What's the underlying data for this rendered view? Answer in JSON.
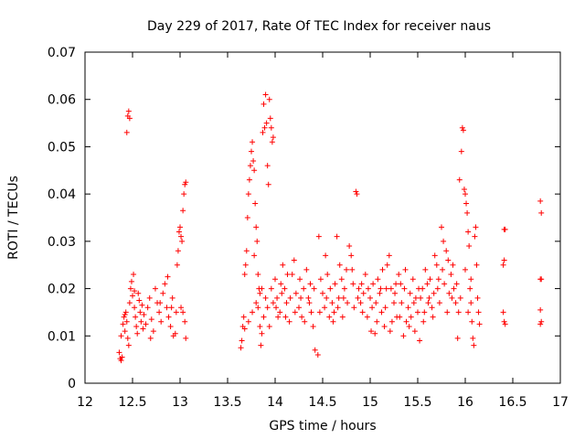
{
  "chart_data": {
    "type": "scatter",
    "title": "Day 229 of 2017, Rate Of TEC Index for receiver naus",
    "xlabel": "GPS time / hours",
    "ylabel": "ROTI / TECUs",
    "xlim": [
      12,
      17
    ],
    "ylim": [
      0,
      0.07
    ],
    "xticks": [
      "12",
      "12.5",
      "13",
      "13.5",
      "14",
      "14.5",
      "15",
      "15.5",
      "16",
      "16.5",
      "17"
    ],
    "yticks": [
      "0",
      "0.01",
      "0.02",
      "0.03",
      "0.04",
      "0.05",
      "0.06",
      "0.07"
    ],
    "marker": "plus",
    "color": "#ff0000",
    "grid": false,
    "series": [
      {
        "points": [
          [
            12.36,
            0.0065
          ],
          [
            12.37,
            0.0052
          ],
          [
            12.38,
            0.0048
          ],
          [
            12.39,
            0.0055
          ],
          [
            12.38,
            0.01
          ],
          [
            12.4,
            0.0125
          ],
          [
            12.41,
            0.014
          ],
          [
            12.42,
            0.011
          ],
          [
            12.43,
            0.015
          ],
          [
            12.44,
            0.013
          ],
          [
            12.45,
            0.0095
          ],
          [
            12.46,
            0.008
          ],
          [
            12.47,
            0.017
          ],
          [
            12.48,
            0.02
          ],
          [
            12.49,
            0.0215
          ],
          [
            12.5,
            0.0185
          ],
          [
            12.51,
            0.023
          ],
          [
            12.52,
            0.016
          ],
          [
            12.53,
            0.014
          ],
          [
            12.54,
            0.012
          ],
          [
            12.55,
            0.0105
          ],
          [
            12.56,
            0.019
          ],
          [
            12.57,
            0.0175
          ],
          [
            12.58,
            0.015
          ],
          [
            12.59,
            0.013
          ],
          [
            12.6,
            0.0165
          ],
          [
            12.62,
            0.0145
          ],
          [
            12.64,
            0.0125
          ],
          [
            12.66,
            0.016
          ],
          [
            12.68,
            0.018
          ],
          [
            12.7,
            0.0135
          ],
          [
            12.72,
            0.011
          ],
          [
            12.74,
            0.02
          ],
          [
            12.76,
            0.017
          ],
          [
            12.78,
            0.015
          ],
          [
            12.8,
            0.013
          ],
          [
            12.82,
            0.019
          ],
          [
            12.84,
            0.021
          ],
          [
            12.86,
            0.016
          ],
          [
            12.88,
            0.014
          ],
          [
            12.9,
            0.012
          ],
          [
            12.92,
            0.018
          ],
          [
            12.93,
            0.01
          ],
          [
            12.95,
            0.0105
          ],
          [
            12.96,
            0.015
          ],
          [
            12.97,
            0.025
          ],
          [
            12.98,
            0.028
          ],
          [
            12.99,
            0.032
          ],
          [
            13.0,
            0.033
          ],
          [
            13.01,
            0.031
          ],
          [
            13.02,
            0.03
          ],
          [
            13.03,
            0.0365
          ],
          [
            13.04,
            0.04
          ],
          [
            13.05,
            0.042
          ],
          [
            13.06,
            0.0425
          ],
          [
            13.03,
            0.015
          ],
          [
            13.05,
            0.013
          ],
          [
            13.06,
            0.0095
          ],
          [
            12.44,
            0.053
          ],
          [
            12.45,
            0.0565
          ],
          [
            12.46,
            0.0575
          ],
          [
            12.47,
            0.056
          ],
          [
            12.42,
            0.0145
          ],
          [
            12.52,
            0.0195
          ],
          [
            12.61,
            0.0115
          ],
          [
            12.69,
            0.0095
          ],
          [
            12.79,
            0.017
          ],
          [
            12.87,
            0.0225
          ],
          [
            12.91,
            0.016
          ],
          [
            13.01,
            0.016
          ],
          [
            13.64,
            0.0075
          ],
          [
            13.65,
            0.009
          ],
          [
            13.66,
            0.012
          ],
          [
            13.67,
            0.014
          ],
          [
            13.68,
            0.023
          ],
          [
            13.69,
            0.025
          ],
          [
            13.7,
            0.028
          ],
          [
            13.71,
            0.035
          ],
          [
            13.72,
            0.04
          ],
          [
            13.73,
            0.043
          ],
          [
            13.74,
            0.046
          ],
          [
            13.75,
            0.049
          ],
          [
            13.76,
            0.051
          ],
          [
            13.77,
            0.047
          ],
          [
            13.78,
            0.045
          ],
          [
            13.79,
            0.038
          ],
          [
            13.8,
            0.033
          ],
          [
            13.81,
            0.03
          ],
          [
            13.82,
            0.023
          ],
          [
            13.83,
            0.02
          ],
          [
            13.84,
            0.012
          ],
          [
            13.85,
            0.008
          ],
          [
            13.86,
            0.0105
          ],
          [
            13.87,
            0.053
          ],
          [
            13.88,
            0.059
          ],
          [
            13.89,
            0.054
          ],
          [
            13.9,
            0.061
          ],
          [
            13.91,
            0.055
          ],
          [
            13.92,
            0.046
          ],
          [
            13.93,
            0.042
          ],
          [
            13.94,
            0.06
          ],
          [
            13.95,
            0.056
          ],
          [
            13.96,
            0.054
          ],
          [
            13.97,
            0.051
          ],
          [
            13.98,
            0.052
          ],
          [
            13.68,
            0.0115
          ],
          [
            13.72,
            0.013
          ],
          [
            13.76,
            0.015
          ],
          [
            13.8,
            0.017
          ],
          [
            13.84,
            0.019
          ],
          [
            13.88,
            0.014
          ],
          [
            13.92,
            0.016
          ],
          [
            13.96,
            0.02
          ],
          [
            14.0,
            0.022
          ],
          [
            14.02,
            0.018
          ],
          [
            14.05,
            0.015
          ],
          [
            14.08,
            0.025
          ],
          [
            14.1,
            0.02
          ],
          [
            14.12,
            0.017
          ],
          [
            14.15,
            0.013
          ],
          [
            14.18,
            0.023
          ],
          [
            14.2,
            0.026
          ],
          [
            14.22,
            0.019
          ],
          [
            14.25,
            0.016
          ],
          [
            14.28,
            0.014
          ],
          [
            14.3,
            0.02
          ],
          [
            14.33,
            0.024
          ],
          [
            14.35,
            0.018
          ],
          [
            14.38,
            0.015
          ],
          [
            14.4,
            0.012
          ],
          [
            14.42,
            0.007
          ],
          [
            14.45,
            0.006
          ],
          [
            14.46,
            0.031
          ],
          [
            14.48,
            0.022
          ],
          [
            14.5,
            0.019
          ],
          [
            14.53,
            0.027
          ],
          [
            14.55,
            0.023
          ],
          [
            14.58,
            0.02
          ],
          [
            14.6,
            0.017
          ],
          [
            14.62,
            0.015
          ],
          [
            14.65,
            0.031
          ],
          [
            14.68,
            0.025
          ],
          [
            14.7,
            0.022
          ],
          [
            14.72,
            0.018
          ],
          [
            14.75,
            0.024
          ],
          [
            14.78,
            0.029
          ],
          [
            14.8,
            0.027
          ],
          [
            14.82,
            0.021
          ],
          [
            14.85,
            0.0405
          ],
          [
            14.86,
            0.04
          ],
          [
            14.88,
            0.02
          ],
          [
            14.9,
            0.017
          ],
          [
            14.92,
            0.015
          ],
          [
            14.95,
            0.023
          ],
          [
            14.98,
            0.02
          ],
          [
            15.0,
            0.018
          ],
          [
            15.02,
            0.016
          ],
          [
            15.05,
            0.0105
          ],
          [
            15.08,
            0.022
          ],
          [
            15.1,
            0.019
          ],
          [
            15.12,
            0.015
          ],
          [
            15.15,
            0.012
          ],
          [
            15.18,
            0.025
          ],
          [
            15.2,
            0.027
          ],
          [
            15.22,
            0.02
          ],
          [
            15.25,
            0.017
          ],
          [
            15.28,
            0.014
          ],
          [
            15.3,
            0.023
          ],
          [
            15.32,
            0.021
          ],
          [
            15.35,
            0.01
          ],
          [
            15.38,
            0.013
          ],
          [
            15.4,
            0.016
          ],
          [
            15.42,
            0.019
          ],
          [
            15.45,
            0.022
          ],
          [
            15.48,
            0.018
          ],
          [
            15.5,
            0.015
          ],
          [
            15.52,
            0.009
          ],
          [
            15.55,
            0.02
          ],
          [
            15.58,
            0.024
          ],
          [
            15.6,
            0.021
          ],
          [
            15.62,
            0.018
          ],
          [
            15.65,
            0.016
          ],
          [
            15.68,
            0.027
          ],
          [
            15.7,
            0.025
          ],
          [
            15.72,
            0.022
          ],
          [
            15.75,
            0.033
          ],
          [
            15.77,
            0.03
          ],
          [
            15.8,
            0.028
          ],
          [
            15.82,
            0.026
          ],
          [
            15.85,
            0.023
          ],
          [
            15.88,
            0.02
          ],
          [
            15.9,
            0.017
          ],
          [
            15.92,
            0.0095
          ],
          [
            15.94,
            0.043
          ],
          [
            15.96,
            0.049
          ],
          [
            15.97,
            0.054
          ],
          [
            15.98,
            0.0535
          ],
          [
            15.99,
            0.041
          ],
          [
            16.0,
            0.04
          ],
          [
            16.01,
            0.038
          ],
          [
            16.02,
            0.036
          ],
          [
            16.03,
            0.032
          ],
          [
            16.04,
            0.029
          ],
          [
            16.05,
            0.02
          ],
          [
            16.06,
            0.017
          ],
          [
            16.07,
            0.013
          ],
          [
            16.08,
            0.0095
          ],
          [
            16.09,
            0.008
          ],
          [
            16.1,
            0.031
          ],
          [
            16.11,
            0.033
          ],
          [
            16.12,
            0.025
          ],
          [
            16.13,
            0.018
          ],
          [
            16.14,
            0.015
          ],
          [
            16.15,
            0.0125
          ],
          [
            16.41,
            0.0325
          ],
          [
            16.42,
            0.0325
          ],
          [
            16.4,
            0.025
          ],
          [
            16.41,
            0.026
          ],
          [
            16.4,
            0.015
          ],
          [
            16.41,
            0.013
          ],
          [
            16.42,
            0.0125
          ],
          [
            16.79,
            0.0385
          ],
          [
            16.8,
            0.036
          ],
          [
            16.79,
            0.022
          ],
          [
            16.8,
            0.022
          ],
          [
            16.79,
            0.0155
          ],
          [
            16.8,
            0.013
          ],
          [
            16.79,
            0.0125
          ],
          [
            14.03,
            0.014
          ],
          [
            14.07,
            0.019
          ],
          [
            14.13,
            0.023
          ],
          [
            14.27,
            0.018
          ],
          [
            14.37,
            0.021
          ],
          [
            14.52,
            0.016
          ],
          [
            14.57,
            0.014
          ],
          [
            14.63,
            0.021
          ],
          [
            14.67,
            0.018
          ],
          [
            14.73,
            0.02
          ],
          [
            14.83,
            0.016
          ],
          [
            14.93,
            0.019
          ],
          [
            15.03,
            0.021
          ],
          [
            15.07,
            0.013
          ],
          [
            15.13,
            0.024
          ],
          [
            15.17,
            0.02
          ],
          [
            15.23,
            0.013
          ],
          [
            15.27,
            0.021
          ],
          [
            15.33,
            0.017
          ],
          [
            15.37,
            0.024
          ],
          [
            15.43,
            0.014
          ],
          [
            15.47,
            0.011
          ],
          [
            15.53,
            0.018
          ],
          [
            15.57,
            0.015
          ],
          [
            15.63,
            0.022
          ],
          [
            15.67,
            0.019
          ],
          [
            15.73,
            0.017
          ],
          [
            15.78,
            0.021
          ],
          [
            15.83,
            0.019
          ],
          [
            15.87,
            0.025
          ],
          [
            15.93,
            0.015
          ],
          [
            13.78,
            0.027
          ],
          [
            13.82,
            0.016
          ],
          [
            13.86,
            0.02
          ],
          [
            13.9,
            0.018
          ],
          [
            13.94,
            0.012
          ],
          [
            13.98,
            0.017
          ],
          [
            14.01,
            0.016
          ],
          [
            14.06,
            0.021
          ],
          [
            14.11,
            0.014
          ],
          [
            14.16,
            0.018
          ],
          [
            14.21,
            0.015
          ],
          [
            14.26,
            0.022
          ],
          [
            14.31,
            0.013
          ],
          [
            14.36,
            0.017
          ],
          [
            14.41,
            0.02
          ],
          [
            14.47,
            0.015
          ],
          [
            14.54,
            0.018
          ],
          [
            14.61,
            0.013
          ],
          [
            14.66,
            0.016
          ],
          [
            14.71,
            0.014
          ],
          [
            14.76,
            0.017
          ],
          [
            14.81,
            0.024
          ],
          [
            14.87,
            0.018
          ],
          [
            14.91,
            0.021
          ],
          [
            14.97,
            0.014
          ],
          [
            15.01,
            0.011
          ],
          [
            15.06,
            0.017
          ],
          [
            15.11,
            0.02
          ],
          [
            15.16,
            0.016
          ],
          [
            15.21,
            0.011
          ],
          [
            15.26,
            0.019
          ],
          [
            15.31,
            0.014
          ],
          [
            15.36,
            0.02
          ],
          [
            15.41,
            0.012
          ],
          [
            15.46,
            0.017
          ],
          [
            15.51,
            0.02
          ],
          [
            15.56,
            0.013
          ],
          [
            15.61,
            0.017
          ],
          [
            15.66,
            0.014
          ],
          [
            15.71,
            0.02
          ],
          [
            15.76,
            0.024
          ],
          [
            15.81,
            0.015
          ],
          [
            15.86,
            0.018
          ],
          [
            15.91,
            0.021
          ],
          [
            15.95,
            0.018
          ],
          [
            16.0,
            0.024
          ],
          [
            16.03,
            0.015
          ],
          [
            16.06,
            0.022
          ]
        ]
      }
    ]
  }
}
